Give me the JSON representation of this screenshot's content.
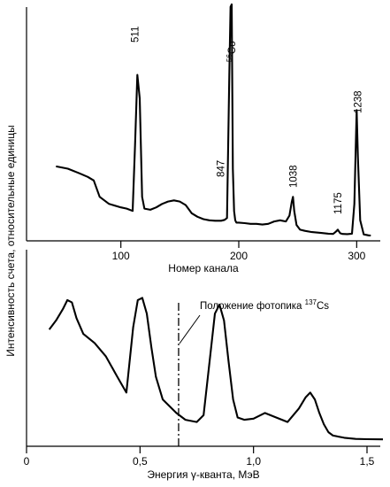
{
  "y_axis_label": "Интенсивность счета, относительные единицы",
  "chart_data": [
    {
      "type": "line",
      "title": "",
      "xlabel": "Номер канала",
      "ylabel": "",
      "xlim": [
        20,
        320
      ],
      "xticks": [
        100,
        200,
        300
      ],
      "xtick_labels": [
        "100",
        "200",
        "300"
      ],
      "grid": false,
      "legend": "none",
      "series": [
        {
          "values_note_unit": "relative intensity",
          "x": [
            45,
            55,
            65,
            72,
            77,
            82,
            90,
            100,
            105,
            110,
            112,
            114,
            116,
            118,
            120,
            125,
            130,
            135,
            140,
            145,
            150,
            155,
            160,
            165,
            170,
            175,
            180,
            185,
            188,
            190,
            192,
            193,
            194,
            195,
            196,
            197,
            198,
            200,
            205,
            210,
            215,
            220,
            225,
            230,
            235,
            240,
            243,
            245,
            246,
            247,
            249,
            252,
            256,
            262,
            270,
            276,
            280,
            282,
            284,
            286,
            288,
            292,
            296,
            298,
            300,
            301,
            303,
            306,
            310,
            312
          ],
          "y": [
            31,
            30,
            28,
            26.5,
            25,
            18,
            15,
            13.5,
            13,
            12,
            40,
            70,
            60,
            18,
            13,
            12.5,
            13.5,
            15,
            16,
            16.5,
            16,
            14.5,
            11,
            9.5,
            8.5,
            8,
            7.8,
            7.8,
            8.2,
            9,
            70,
            99,
            100,
            30,
            12,
            8,
            7,
            7,
            6.8,
            6.5,
            6.5,
            6.2,
            6.5,
            7.5,
            8,
            7.5,
            10,
            16,
            18,
            12,
            6,
            4,
            3.5,
            3,
            2.6,
            2.3,
            2.2,
            3,
            4,
            2.5,
            2.2,
            2.1,
            2.3,
            15,
            55,
            35,
            8,
            2,
            1.6,
            1.5
          ]
        }
      ],
      "annotations": [
        {
          "label": "511",
          "x": 112
        },
        {
          "label": "56",
          "label_suffix": "Co",
          "x": 194
        },
        {
          "label": "847",
          "x": 190
        },
        {
          "label": "1038",
          "x": 246
        },
        {
          "label": "1175",
          "x": 284
        },
        {
          "label": "1238",
          "x": 301
        }
      ]
    },
    {
      "type": "line",
      "title": "",
      "xlabel": "Энергия γ-кванта, МэВ",
      "ylabel": "",
      "xlim": [
        0,
        1.58
      ],
      "xticks": [
        0,
        0.5,
        1.0,
        1.5
      ],
      "xtick_labels": [
        "0",
        "0,5",
        "1,0",
        "1,5"
      ],
      "grid": false,
      "legend": "none",
      "series": [
        {
          "values_note_unit": "relative intensity",
          "x": [
            0.1,
            0.13,
            0.16,
            0.18,
            0.2,
            0.22,
            0.25,
            0.3,
            0.35,
            0.4,
            0.44,
            0.47,
            0.49,
            0.51,
            0.53,
            0.55,
            0.57,
            0.6,
            0.63,
            0.66,
            0.7,
            0.75,
            0.78,
            0.81,
            0.83,
            0.85,
            0.87,
            0.89,
            0.91,
            0.93,
            0.96,
            1.0,
            1.05,
            1.1,
            1.15,
            1.2,
            1.23,
            1.25,
            1.27,
            1.29,
            1.31,
            1.33,
            1.35,
            1.4,
            1.45,
            1.5,
            1.57
          ],
          "y": [
            49,
            53,
            58,
            62,
            61,
            54,
            47,
            43,
            37,
            28,
            21,
            50,
            62,
            63,
            56,
            41,
            28,
            18,
            15,
            12,
            9,
            8,
            11,
            38,
            56,
            60,
            53,
            35,
            18,
            10,
            9,
            9.5,
            12,
            10,
            8,
            14,
            19,
            21,
            18,
            12,
            7,
            3.5,
            2,
            1,
            0.5,
            0.4,
            0.3
          ]
        }
      ],
      "annotations": [
        {
          "label": "Положение фотопика",
          "label_sup": "137",
          "label_suffix": "Cs",
          "x": 0.67,
          "style": "dash-dot vertical line"
        }
      ]
    }
  ]
}
